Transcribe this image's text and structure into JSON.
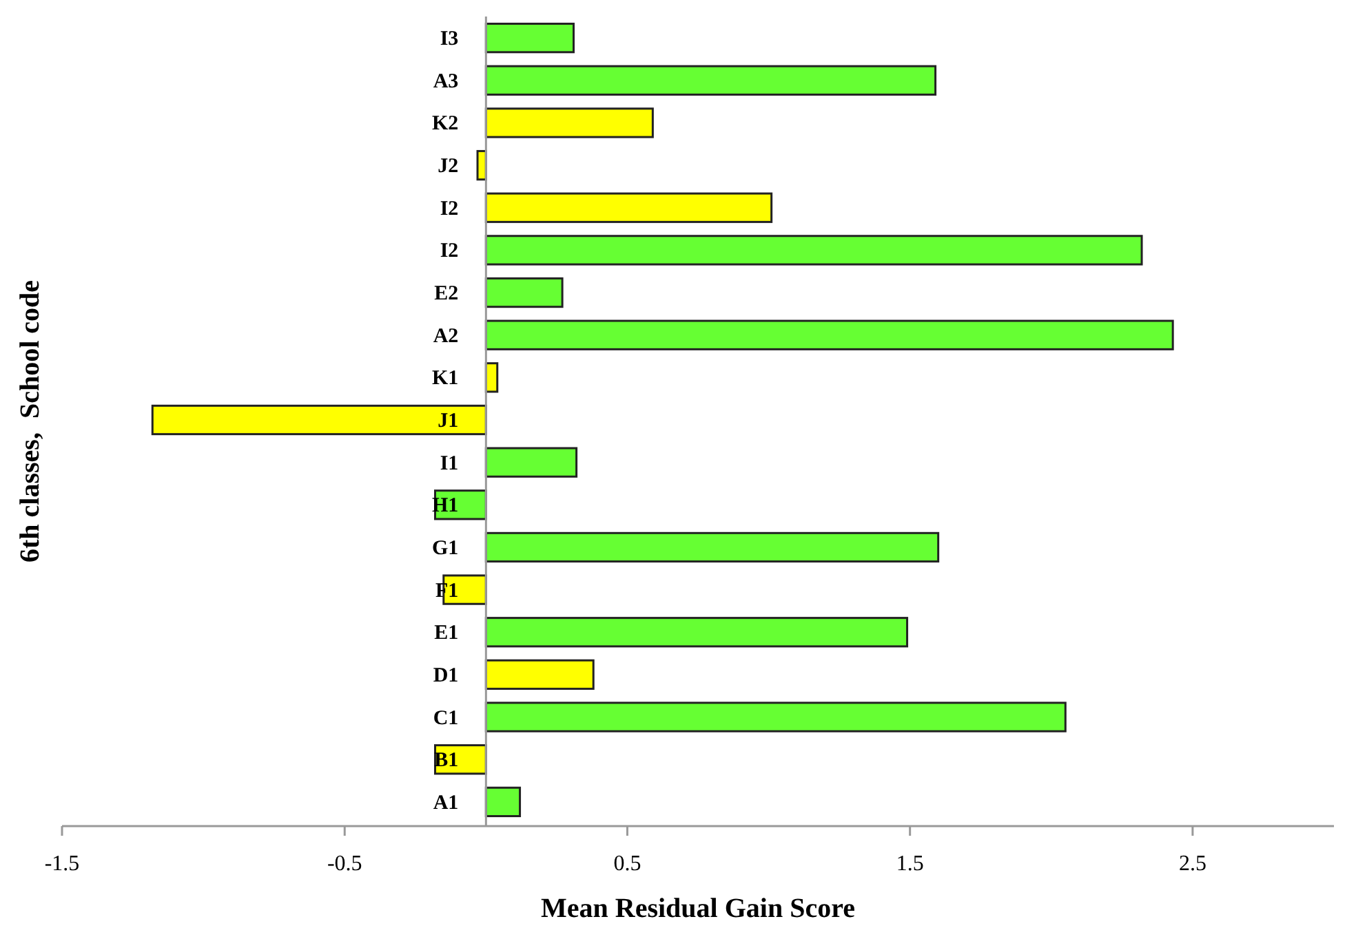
{
  "chart_data": {
    "type": "bar",
    "orientation": "horizontal",
    "xlabel": "Mean Residual Gain Score",
    "ylabel": "6th classes,  School code",
    "categories": [
      "I3",
      "A3",
      "K2",
      "J2",
      "I2",
      "I2",
      "E2",
      "A2",
      "K1",
      "J1",
      "I1",
      "H1",
      "G1",
      "F1",
      "E1",
      "D1",
      "C1",
      "B1",
      "A1"
    ],
    "values": [
      0.31,
      1.59,
      0.59,
      -0.03,
      1.01,
      2.32,
      0.27,
      2.43,
      0.04,
      -1.18,
      0.32,
      -0.18,
      1.6,
      -0.15,
      1.49,
      0.38,
      2.05,
      -0.18,
      0.12
    ],
    "colors": [
      "#66ff33",
      "#66ff33",
      "#ffff00",
      "#ffff00",
      "#ffff00",
      "#66ff33",
      "#66ff33",
      "#66ff33",
      "#ffff00",
      "#ffff00",
      "#66ff33",
      "#66ff33",
      "#66ff33",
      "#ffff00",
      "#66ff33",
      "#ffff00",
      "#66ff33",
      "#ffff00",
      "#66ff33"
    ],
    "xlim": [
      -1.5,
      3
    ],
    "xticks": [
      -1.5,
      -0.5,
      0.5,
      1.5,
      2.5
    ],
    "grid": false
  }
}
